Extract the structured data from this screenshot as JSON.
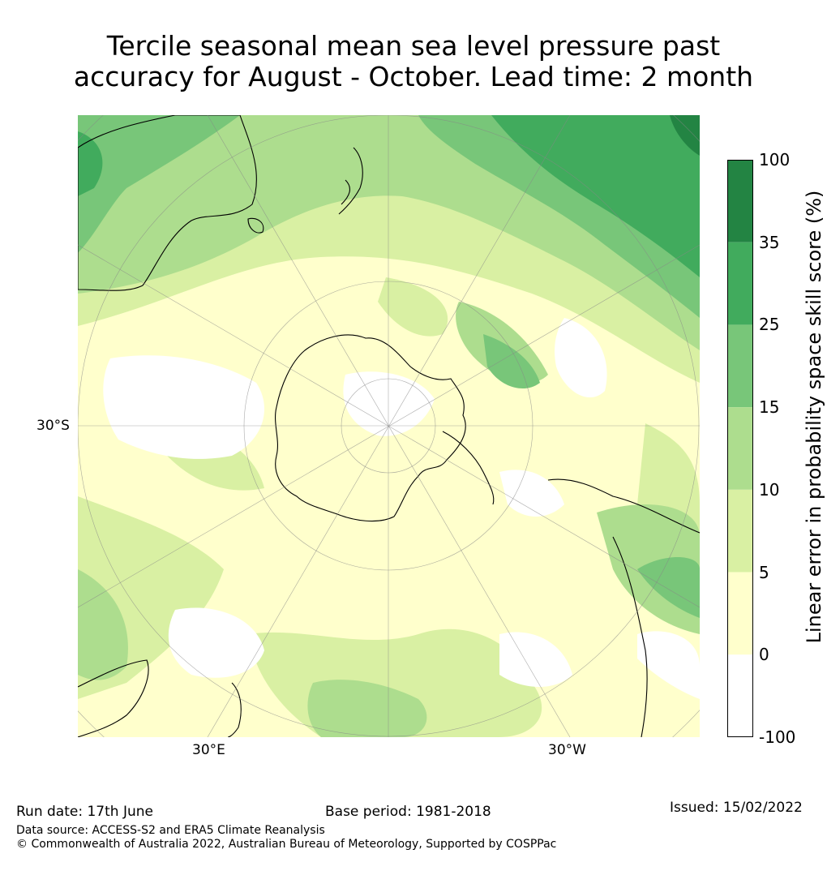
{
  "title": {
    "line1": "Tercile seasonal mean sea level pressure past",
    "line2": "accuracy for August - October. Lead time: 2 month"
  },
  "map": {
    "projection": "south-polar-stereographic",
    "lat_label": "30°S",
    "lon_labels": [
      "30°E",
      "30°W"
    ]
  },
  "colorbar": {
    "label": "Linear error in probability space skill score (%)",
    "ticks": [
      "100",
      "35",
      "25",
      "15",
      "10",
      "5",
      "0",
      "-100"
    ],
    "bins": [
      {
        "range": "35 to 100",
        "color": "#238443"
      },
      {
        "range": "25 to 35",
        "color": "#41ab5d"
      },
      {
        "range": "15 to 25",
        "color": "#78c679"
      },
      {
        "range": "10 to 15",
        "color": "#addd8e"
      },
      {
        "range": "5 to 10",
        "color": "#d9f0a3"
      },
      {
        "range": "0 to 5",
        "color": "#ffffcc"
      },
      {
        "range": "-100 to 0",
        "color": "#ffffff"
      }
    ]
  },
  "footer": {
    "run_date": "Run date: 17th June",
    "base_period": "Base period: 1981-2018",
    "issued": "Issued: 15/02/2022",
    "data_source": "Data source: ACCESS-S2 and ERA5 Climate Reanalysis",
    "copyright": "© Commonwealth of Australia 2022, Australian Bureau of Meteorology, Supported by COSPPac"
  }
}
